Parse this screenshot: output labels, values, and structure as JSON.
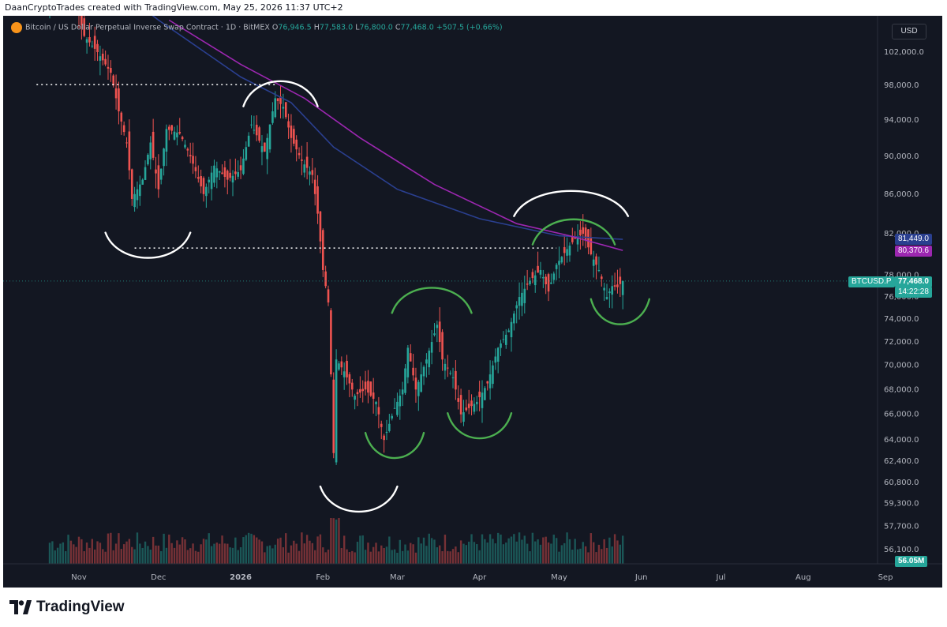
{
  "header": {
    "attribution": "DaanCryptoTrades created with TradingView.com, May 25, 2026 11:37 UTC+2"
  },
  "legend": {
    "symbol_name": "Bitcoin / US Dollar Perpetual Inverse Swap Contract · 1D · BitMEX",
    "o_label": "O",
    "o_value": "76,946.5",
    "h_label": "H",
    "h_value": "77,583.0",
    "l_label": "L",
    "l_value": "76,800.0",
    "c_label": "C",
    "c_value": "77,468.0",
    "change": "+507.5 (+0.66%)"
  },
  "currency_button": "USD",
  "price_tags": {
    "ma_blue": "81,449.0",
    "ma_purple": "80,370.6",
    "symbol": "BTCUSD.P",
    "last": "77,468.0",
    "countdown": "14:22:28",
    "volume": "56.05M"
  },
  "footer": {
    "logo_text": "TradingView"
  },
  "colors": {
    "background": "#131722",
    "up": "#26a69a",
    "down": "#ef5350",
    "ma_blue": "#2a3f8f",
    "ma_purple": "#9c27b0",
    "drawing_white": "#ffffff",
    "drawing_green": "#4caf50"
  },
  "chart_data": {
    "type": "candlestick",
    "title": "",
    "y_scale": "log",
    "ylim": [
      55000,
      105000
    ],
    "y_ticks": [
      {
        "value": 102000,
        "label": "102,000.0"
      },
      {
        "value": 98000,
        "label": "98,000.0"
      },
      {
        "value": 94000,
        "label": "94,000.0"
      },
      {
        "value": 90000,
        "label": "90,000.0"
      },
      {
        "value": 86000,
        "label": "86,000.0"
      },
      {
        "value": 82000,
        "label": "82,000.0"
      },
      {
        "value": 78000,
        "label": "78,000.0"
      },
      {
        "value": 76000,
        "label": "76,000.0"
      },
      {
        "value": 74000,
        "label": "74,000.0"
      },
      {
        "value": 72000,
        "label": "72,000.0"
      },
      {
        "value": 70000,
        "label": "70,000.0"
      },
      {
        "value": 68000,
        "label": "68,000.0"
      },
      {
        "value": 66000,
        "label": "66,000.0"
      },
      {
        "value": 64000,
        "label": "64,000.0"
      },
      {
        "value": 62400,
        "label": "62,400.0"
      },
      {
        "value": 60800,
        "label": "60,800.0"
      },
      {
        "value": 59300,
        "label": "59,300.0"
      },
      {
        "value": 57700,
        "label": "57,700.0"
      },
      {
        "value": 56100,
        "label": "56,100.0"
      }
    ],
    "x_ticks": [
      {
        "date": "2025-11-01",
        "label": "Nov"
      },
      {
        "date": "2025-12-01",
        "label": "Dec"
      },
      {
        "date": "2026-01-01",
        "label": "2026"
      },
      {
        "date": "2026-02-01",
        "label": "Feb"
      },
      {
        "date": "2026-03-01",
        "label": "Mar"
      },
      {
        "date": "2026-04-01",
        "label": "Apr"
      },
      {
        "date": "2026-05-01",
        "label": "May"
      },
      {
        "date": "2026-06-01",
        "label": "Jun"
      },
      {
        "date": "2026-07-01",
        "label": "Jul"
      },
      {
        "date": "2026-08-01",
        "label": "Aug"
      },
      {
        "date": "2026-09-01",
        "label": "Sep"
      }
    ],
    "close_path": [
      [
        "2025-10-21",
        108000
      ],
      [
        "2025-10-28",
        112000
      ],
      [
        "2025-11-03",
        104000
      ],
      [
        "2025-11-08",
        102000
      ],
      [
        "2025-11-13",
        99500
      ],
      [
        "2025-11-16",
        95000
      ],
      [
        "2025-11-19",
        91500
      ],
      [
        "2025-11-21",
        85500
      ],
      [
        "2025-11-25",
        87500
      ],
      [
        "2025-11-28",
        91500
      ],
      [
        "2025-12-01",
        86500
      ],
      [
        "2025-12-04",
        93000
      ],
      [
        "2025-12-09",
        92500
      ],
      [
        "2025-12-13",
        90000
      ],
      [
        "2025-12-18",
        86000
      ],
      [
        "2025-12-22",
        89000
      ],
      [
        "2025-12-27",
        87500
      ],
      [
        "2026-01-01",
        88500
      ],
      [
        "2026-01-05",
        93500
      ],
      [
        "2026-01-10",
        90500
      ],
      [
        "2026-01-14",
        96500
      ],
      [
        "2026-01-17",
        95500
      ],
      [
        "2026-01-20",
        92000
      ],
      [
        "2026-01-24",
        89500
      ],
      [
        "2026-01-28",
        88000
      ],
      [
        "2026-01-30",
        84000
      ],
      [
        "2026-02-01",
        78500
      ],
      [
        "2026-02-03",
        75500
      ],
      [
        "2026-02-05",
        63000
      ],
      [
        "2026-02-06",
        70500
      ],
      [
        "2026-02-09",
        69500
      ],
      [
        "2026-02-13",
        67500
      ],
      [
        "2026-02-17",
        68000
      ],
      [
        "2026-02-21",
        67000
      ],
      [
        "2026-02-24",
        64000
      ],
      [
        "2026-02-28",
        66500
      ],
      [
        "2026-03-03",
        68000
      ],
      [
        "2026-03-05",
        71500
      ],
      [
        "2026-03-08",
        68000
      ],
      [
        "2026-03-12",
        70500
      ],
      [
        "2026-03-16",
        73500
      ],
      [
        "2026-03-18",
        70500
      ],
      [
        "2026-03-22",
        69000
      ],
      [
        "2026-03-25",
        66000
      ],
      [
        "2026-03-28",
        66500
      ],
      [
        "2026-03-31",
        67000
      ],
      [
        "2026-04-04",
        68500
      ],
      [
        "2026-04-08",
        71500
      ],
      [
        "2026-04-12",
        73000
      ],
      [
        "2026-04-16",
        76000
      ],
      [
        "2026-04-20",
        77500
      ],
      [
        "2026-04-24",
        78500
      ],
      [
        "2026-04-27",
        76500
      ],
      [
        "2026-04-30",
        79000
      ],
      [
        "2026-05-04",
        80500
      ],
      [
        "2026-05-07",
        81500
      ],
      [
        "2026-05-10",
        82000
      ],
      [
        "2026-05-13",
        80000
      ],
      [
        "2026-05-16",
        78500
      ],
      [
        "2026-05-19",
        76000
      ],
      [
        "2026-05-21",
        77000
      ],
      [
        "2026-05-23",
        76900
      ],
      [
        "2026-05-25",
        77468
      ]
    ],
    "volume_ylim": [
      0,
      100
    ],
    "ma_blue": [
      [
        "2025-11-05",
        113000
      ],
      [
        "2025-12-01",
        106000
      ],
      [
        "2026-01-01",
        99000
      ],
      [
        "2026-01-20",
        96000
      ],
      [
        "2026-02-05",
        91000
      ],
      [
        "2026-03-01",
        86500
      ],
      [
        "2026-04-01",
        83500
      ],
      [
        "2026-05-01",
        81800
      ],
      [
        "2026-05-25",
        81449
      ]
    ],
    "ma_purple": [
      [
        "2025-12-05",
        106000
      ],
      [
        "2026-01-01",
        100500
      ],
      [
        "2026-01-25",
        96500
      ],
      [
        "2026-02-15",
        92000
      ],
      [
        "2026-03-15",
        87000
      ],
      [
        "2026-04-15",
        83000
      ],
      [
        "2026-05-05",
        81800
      ],
      [
        "2026-05-25",
        80370.6
      ]
    ],
    "levels": [
      {
        "value": 98100,
        "from": "2025-10-16",
        "to": "2026-01-15",
        "style": "dotted"
      },
      {
        "value": 80600,
        "from": "2025-11-22",
        "to": "2026-04-30",
        "style": "dotted"
      }
    ],
    "last_price": 77468,
    "annotations": [
      {
        "type": "arc",
        "color": "white",
        "from": "2025-11-11",
        "to": "2025-12-13",
        "value": 79500,
        "shape": "cup"
      },
      {
        "type": "arc",
        "color": "white",
        "from": "2026-01-02",
        "to": "2026-01-30",
        "value": 98700,
        "shape": "cap"
      },
      {
        "type": "arc",
        "color": "white",
        "from": "2026-01-31",
        "to": "2026-03-01",
        "value": 58600,
        "shape": "cup"
      },
      {
        "type": "arc",
        "color": "white",
        "from": "2026-04-14",
        "to": "2026-05-27",
        "value": 86500,
        "shape": "cap"
      },
      {
        "type": "arc",
        "color": "green",
        "from": "2026-02-17",
        "to": "2026-03-11",
        "value": 62500,
        "shape": "cup"
      },
      {
        "type": "arc",
        "color": "green",
        "from": "2026-02-27",
        "to": "2026-03-29",
        "value": 77000,
        "shape": "cap"
      },
      {
        "type": "arc",
        "color": "green",
        "from": "2026-03-20",
        "to": "2026-04-13",
        "value": 64000,
        "shape": "cup"
      },
      {
        "type": "arc",
        "color": "green",
        "from": "2026-04-21",
        "to": "2026-05-22",
        "value": 83600,
        "shape": "cap"
      },
      {
        "type": "arc",
        "color": "green",
        "from": "2026-05-13",
        "to": "2026-06-04",
        "value": 73400,
        "shape": "cup"
      }
    ]
  }
}
